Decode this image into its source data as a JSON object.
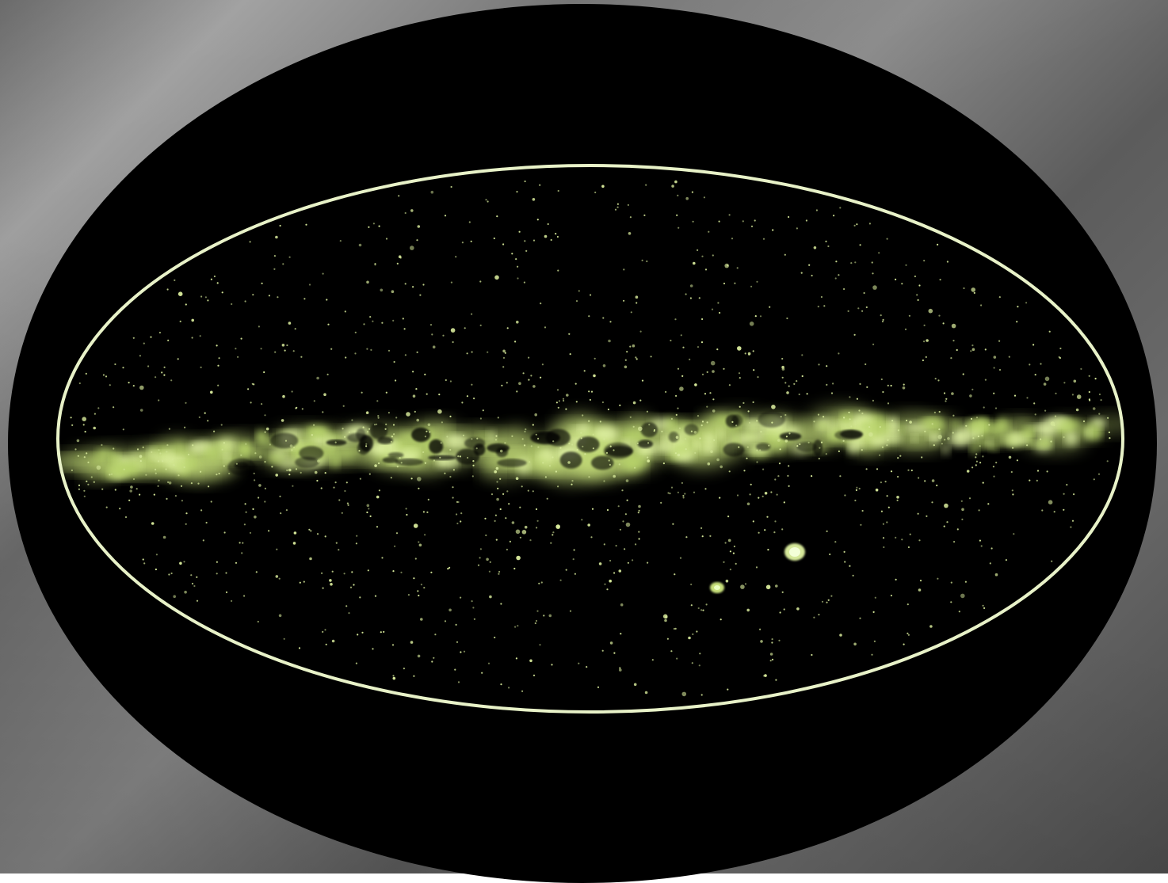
{
  "image": {
    "subject": "galaxy-all-sky-map",
    "colors": {
      "background_gray": "#6e6e6e",
      "frame_black": "#000000",
      "outline": "#e8f2c8",
      "glow": "#c8e07a",
      "star": "#d6e89a"
    }
  }
}
